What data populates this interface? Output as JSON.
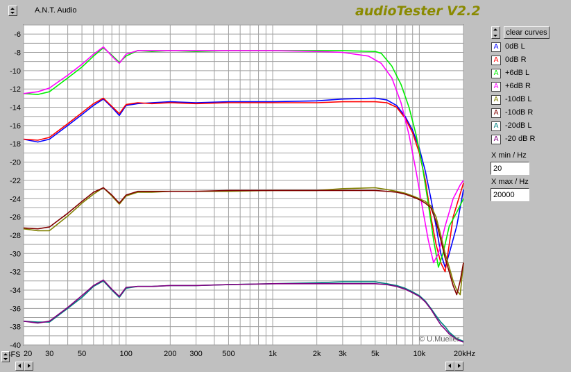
{
  "window": {
    "app_name": "A.N.T. Audio",
    "title": "audioTester V2.2"
  },
  "controls": {
    "clear_label": "clear curves",
    "xmin_label": "X min / Hz",
    "xmin_value": "20",
    "xmax_label": "X max / Hz",
    "xmax_value": "20000"
  },
  "legend": [
    {
      "name": "0dB L",
      "color": "#0000ff"
    },
    {
      "name": "0dB R",
      "color": "#ff0000"
    },
    {
      "name": "+6dB L",
      "color": "#00ee00"
    },
    {
      "name": "+6dB R",
      "color": "#ff00ff"
    },
    {
      "name": "-10dB L",
      "color": "#808000"
    },
    {
      "name": "-10dB R",
      "color": "#800000"
    },
    {
      "name": "-20dB L",
      "color": "#008080"
    },
    {
      "name": "-20 dB R",
      "color": "#800080"
    }
  ],
  "chart_data": {
    "type": "line",
    "copyright": "© U.Mueller",
    "xscale": "log",
    "xlim": [
      20,
      20000
    ],
    "ylim": [
      -40,
      -5
    ],
    "ylabel": "dBFS",
    "xlabel": "Hz",
    "grid": true,
    "y_ticks": [
      -6,
      -8,
      -10,
      -12,
      -14,
      -16,
      -18,
      -20,
      -22,
      -24,
      -26,
      -28,
      -30,
      -32,
      -34,
      -36,
      -38,
      -40
    ],
    "x_ticks": [
      {
        "v": 20,
        "label": "20"
      },
      {
        "v": 30,
        "label": "30"
      },
      {
        "v": 50,
        "label": "50"
      },
      {
        "v": 100,
        "label": "100"
      },
      {
        "v": 200,
        "label": "200"
      },
      {
        "v": 300,
        "label": "300"
      },
      {
        "v": 500,
        "label": "500"
      },
      {
        "v": 1000,
        "label": "1k"
      },
      {
        "v": 2000,
        "label": "2k"
      },
      {
        "v": 3000,
        "label": "3k"
      },
      {
        "v": 5000,
        "label": "5k"
      },
      {
        "v": 10000,
        "label": "10k"
      },
      {
        "v": 20000,
        "label": "20kHz"
      }
    ],
    "series": [
      {
        "name": "0dB L",
        "color": "#0000ff",
        "points": [
          [
            20,
            -17.5
          ],
          [
            25,
            -17.8
          ],
          [
            30,
            -17.5
          ],
          [
            40,
            -16
          ],
          [
            50,
            -14.8
          ],
          [
            60,
            -13.8
          ],
          [
            70,
            -13.1
          ],
          [
            80,
            -14
          ],
          [
            90,
            -14.9
          ],
          [
            100,
            -13.8
          ],
          [
            120,
            -13.6
          ],
          [
            150,
            -13.5
          ],
          [
            200,
            -13.4
          ],
          [
            300,
            -13.5
          ],
          [
            500,
            -13.4
          ],
          [
            1000,
            -13.4
          ],
          [
            2000,
            -13.3
          ],
          [
            3000,
            -13.1
          ],
          [
            5000,
            -13
          ],
          [
            6000,
            -13.2
          ],
          [
            7000,
            -13.8
          ],
          [
            8000,
            -15
          ],
          [
            9000,
            -16.5
          ],
          [
            10000,
            -18.5
          ],
          [
            11000,
            -21
          ],
          [
            12000,
            -24
          ],
          [
            13000,
            -27
          ],
          [
            14000,
            -30
          ],
          [
            15000,
            -31.5
          ],
          [
            16000,
            -30
          ],
          [
            18000,
            -27
          ],
          [
            20000,
            -23
          ]
        ]
      },
      {
        "name": "0dB R",
        "color": "#ff0000",
        "points": [
          [
            20,
            -17.5
          ],
          [
            25,
            -17.6
          ],
          [
            30,
            -17.3
          ],
          [
            40,
            -15.8
          ],
          [
            50,
            -14.6
          ],
          [
            60,
            -13.6
          ],
          [
            70,
            -13
          ],
          [
            80,
            -13.9
          ],
          [
            90,
            -14.7
          ],
          [
            100,
            -13.7
          ],
          [
            120,
            -13.5
          ],
          [
            150,
            -13.6
          ],
          [
            200,
            -13.5
          ],
          [
            300,
            -13.6
          ],
          [
            500,
            -13.5
          ],
          [
            1000,
            -13.5
          ],
          [
            2000,
            -13.5
          ],
          [
            3000,
            -13.4
          ],
          [
            5000,
            -13.4
          ],
          [
            6000,
            -13.5
          ],
          [
            7000,
            -14
          ],
          [
            8000,
            -15.2
          ],
          [
            9000,
            -16.8
          ],
          [
            10000,
            -19
          ],
          [
            11000,
            -22
          ],
          [
            12000,
            -26
          ],
          [
            13000,
            -29
          ],
          [
            14000,
            -31
          ],
          [
            15000,
            -32
          ],
          [
            16000,
            -29
          ],
          [
            17000,
            -26
          ],
          [
            20000,
            -22.3
          ]
        ]
      },
      {
        "name": "+6dB L",
        "color": "#00ee00",
        "points": [
          [
            20,
            -12.5
          ],
          [
            25,
            -12.6
          ],
          [
            30,
            -12.3
          ],
          [
            40,
            -10.8
          ],
          [
            50,
            -9.6
          ],
          [
            60,
            -8.4
          ],
          [
            70,
            -7.5
          ],
          [
            80,
            -8.3
          ],
          [
            90,
            -9.1
          ],
          [
            100,
            -8.4
          ],
          [
            120,
            -7.8
          ],
          [
            150,
            -7.9
          ],
          [
            200,
            -7.8
          ],
          [
            300,
            -7.9
          ],
          [
            500,
            -7.8
          ],
          [
            1000,
            -7.8
          ],
          [
            2000,
            -7.8
          ],
          [
            3000,
            -7.8
          ],
          [
            5000,
            -7.9
          ],
          [
            5500,
            -8.1
          ],
          [
            6500,
            -9.5
          ],
          [
            7500,
            -11.5
          ],
          [
            8500,
            -14
          ],
          [
            9500,
            -17
          ],
          [
            10500,
            -20.5
          ],
          [
            11500,
            -24.5
          ],
          [
            12500,
            -28.5
          ],
          [
            13500,
            -31.5
          ],
          [
            14500,
            -30
          ],
          [
            16000,
            -27
          ],
          [
            18000,
            -25.5
          ],
          [
            20000,
            -24
          ]
        ]
      },
      {
        "name": "+6dB R",
        "color": "#ff00ff",
        "points": [
          [
            20,
            -12.5
          ],
          [
            25,
            -12.3
          ],
          [
            30,
            -11.9
          ],
          [
            40,
            -10.5
          ],
          [
            50,
            -9.3
          ],
          [
            60,
            -8.2
          ],
          [
            70,
            -7.4
          ],
          [
            80,
            -8.4
          ],
          [
            90,
            -9.2
          ],
          [
            100,
            -8.2
          ],
          [
            120,
            -7.8
          ],
          [
            150,
            -7.8
          ],
          [
            200,
            -7.8
          ],
          [
            300,
            -7.8
          ],
          [
            500,
            -7.8
          ],
          [
            1000,
            -7.8
          ],
          [
            2000,
            -7.9
          ],
          [
            3000,
            -8
          ],
          [
            4500,
            -8.4
          ],
          [
            5500,
            -9.2
          ],
          [
            6500,
            -10.8
          ],
          [
            7500,
            -13.5
          ],
          [
            8500,
            -17
          ],
          [
            9500,
            -21
          ],
          [
            10500,
            -25
          ],
          [
            11500,
            -28.5
          ],
          [
            12500,
            -31
          ],
          [
            13500,
            -30
          ],
          [
            15000,
            -27
          ],
          [
            17000,
            -24
          ],
          [
            19000,
            -22.5
          ],
          [
            20000,
            -22
          ]
        ]
      },
      {
        "name": "-10dB L",
        "color": "#808000",
        "points": [
          [
            20,
            -27.3
          ],
          [
            25,
            -27.5
          ],
          [
            30,
            -27.5
          ],
          [
            40,
            -25.9
          ],
          [
            50,
            -24.5
          ],
          [
            60,
            -23.5
          ],
          [
            70,
            -22.8
          ],
          [
            80,
            -23.7
          ],
          [
            90,
            -24.6
          ],
          [
            100,
            -23.7
          ],
          [
            120,
            -23.3
          ],
          [
            150,
            -23.3
          ],
          [
            200,
            -23.2
          ],
          [
            300,
            -23.2
          ],
          [
            500,
            -23.2
          ],
          [
            1000,
            -23.1
          ],
          [
            2000,
            -23.1
          ],
          [
            3000,
            -22.9
          ],
          [
            5000,
            -22.8
          ],
          [
            6000,
            -23
          ],
          [
            7000,
            -23.2
          ],
          [
            8000,
            -23.4
          ],
          [
            9000,
            -23.7
          ],
          [
            10000,
            -24
          ],
          [
            11000,
            -24.3
          ],
          [
            12000,
            -24.8
          ],
          [
            13000,
            -26
          ],
          [
            14000,
            -28
          ],
          [
            15000,
            -30
          ],
          [
            16000,
            -31.5
          ],
          [
            17000,
            -33
          ],
          [
            18000,
            -34
          ],
          [
            19000,
            -34.5
          ],
          [
            20000,
            -31
          ]
        ]
      },
      {
        "name": "-10dB R",
        "color": "#800000",
        "points": [
          [
            20,
            -27.2
          ],
          [
            25,
            -27.3
          ],
          [
            30,
            -27.1
          ],
          [
            40,
            -25.6
          ],
          [
            50,
            -24.3
          ],
          [
            60,
            -23.3
          ],
          [
            70,
            -22.8
          ],
          [
            80,
            -23.6
          ],
          [
            90,
            -24.5
          ],
          [
            100,
            -23.6
          ],
          [
            120,
            -23.2
          ],
          [
            150,
            -23.2
          ],
          [
            200,
            -23.2
          ],
          [
            300,
            -23.2
          ],
          [
            500,
            -23.1
          ],
          [
            1000,
            -23.1
          ],
          [
            2000,
            -23.1
          ],
          [
            3000,
            -23.1
          ],
          [
            5000,
            -23.1
          ],
          [
            6000,
            -23.2
          ],
          [
            7000,
            -23.3
          ],
          [
            8000,
            -23.5
          ],
          [
            9000,
            -23.8
          ],
          [
            10000,
            -24.1
          ],
          [
            11000,
            -24.5
          ],
          [
            12000,
            -25
          ],
          [
            13000,
            -26.5
          ],
          [
            14000,
            -28.5
          ],
          [
            15000,
            -30.5
          ],
          [
            16000,
            -32
          ],
          [
            17000,
            -33.5
          ],
          [
            18000,
            -34.5
          ],
          [
            19000,
            -33
          ],
          [
            20000,
            -31
          ]
        ]
      },
      {
        "name": "-20dB L",
        "color": "#008080",
        "points": [
          [
            20,
            -37.4
          ],
          [
            25,
            -37.5
          ],
          [
            30,
            -37.5
          ],
          [
            40,
            -36
          ],
          [
            50,
            -34.8
          ],
          [
            60,
            -33.6
          ],
          [
            70,
            -33
          ],
          [
            80,
            -34
          ],
          [
            90,
            -34.8
          ],
          [
            100,
            -33.8
          ],
          [
            120,
            -33.6
          ],
          [
            150,
            -33.6
          ],
          [
            200,
            -33.5
          ],
          [
            300,
            -33.5
          ],
          [
            500,
            -33.4
          ],
          [
            1000,
            -33.3
          ],
          [
            2000,
            -33.2
          ],
          [
            3000,
            -33.1
          ],
          [
            5000,
            -33.1
          ],
          [
            6000,
            -33.3
          ],
          [
            7000,
            -33.5
          ],
          [
            8000,
            -33.8
          ],
          [
            9000,
            -34.2
          ],
          [
            10000,
            -34.6
          ],
          [
            11000,
            -35.2
          ],
          [
            12000,
            -36
          ],
          [
            13000,
            -36.8
          ],
          [
            14000,
            -37.5
          ],
          [
            15000,
            -38
          ],
          [
            16000,
            -38.6
          ],
          [
            18000,
            -39.3
          ],
          [
            20000,
            -39.6
          ]
        ]
      },
      {
        "name": "-20 dB R",
        "color": "#800080",
        "points": [
          [
            20,
            -37.4
          ],
          [
            25,
            -37.6
          ],
          [
            30,
            -37.4
          ],
          [
            40,
            -35.9
          ],
          [
            50,
            -34.6
          ],
          [
            60,
            -33.5
          ],
          [
            70,
            -32.9
          ],
          [
            80,
            -33.9
          ],
          [
            90,
            -34.7
          ],
          [
            100,
            -33.7
          ],
          [
            120,
            -33.6
          ],
          [
            150,
            -33.6
          ],
          [
            200,
            -33.5
          ],
          [
            300,
            -33.5
          ],
          [
            500,
            -33.4
          ],
          [
            1000,
            -33.3
          ],
          [
            2000,
            -33.3
          ],
          [
            3000,
            -33.3
          ],
          [
            5000,
            -33.3
          ],
          [
            6000,
            -33.4
          ],
          [
            7000,
            -33.6
          ],
          [
            8000,
            -33.9
          ],
          [
            9000,
            -34.3
          ],
          [
            10000,
            -34.7
          ],
          [
            11000,
            -35.3
          ],
          [
            12000,
            -36.1
          ],
          [
            13000,
            -37
          ],
          [
            14000,
            -37.8
          ],
          [
            15000,
            -38.3
          ],
          [
            16000,
            -38.8
          ],
          [
            18000,
            -39.4
          ],
          [
            20000,
            -39.7
          ]
        ]
      }
    ]
  }
}
